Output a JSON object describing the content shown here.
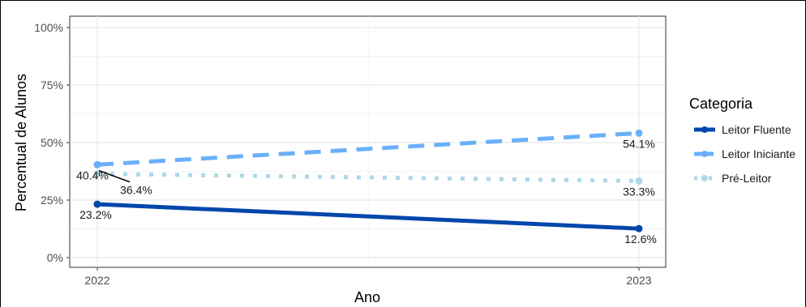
{
  "chart_data": {
    "type": "line",
    "x": [
      "2022",
      "2023"
    ],
    "xlabel": "Ano",
    "ylabel": "Percentual de Alunos",
    "ylim": [
      0,
      100
    ],
    "y_ticks": [
      "0%",
      "25%",
      "50%",
      "75%",
      "100%"
    ],
    "grid": true,
    "legend": {
      "title": "Categoria",
      "position": "right"
    },
    "series": [
      {
        "name": "Leitor Fluente",
        "values": [
          23.2,
          12.6
        ],
        "labels": [
          "23.2%",
          "12.6%"
        ],
        "color": "#0047AB",
        "linestyle": "solid"
      },
      {
        "name": "Leitor Iniciante",
        "values": [
          40.4,
          54.1
        ],
        "labels": [
          "40.4%",
          "54.1%"
        ],
        "color": "#6AB0F9",
        "linestyle": "dashed"
      },
      {
        "name": "Pré-Leitor",
        "values": [
          36.4,
          33.3
        ],
        "labels": [
          "36.4%",
          "33.3%"
        ],
        "color": "#ADD8E6",
        "linestyle": "dotted"
      }
    ]
  }
}
